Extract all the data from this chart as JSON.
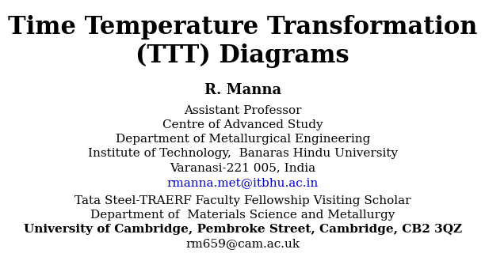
{
  "background_color": "#ffffff",
  "title_line1": "Time Temperature Transformation",
  "title_line2": "(TTT) Diagrams",
  "title_fontsize": 22,
  "title_fontweight": "bold",
  "title_color": "#000000",
  "author": "R. Manna",
  "author_fontsize": 13,
  "author_fontweight": "bold",
  "author_color": "#000000",
  "affiliation_lines": [
    "Assistant Professor",
    "Centre of Advanced Study",
    "Department of Metallurgical Engineering",
    "Institute of Technology,  Banaras Hindu University",
    "Varanasi-221 005, India"
  ],
  "affiliation_fontsize": 11,
  "affiliation_color": "#000000",
  "email1": "rmanna.met@itbhu.ac.in",
  "email1_color": "#0000cc",
  "visiting_lines": [
    "Tata Steel-TRAERF Faculty Fellowship Visiting Scholar",
    "Department of  Materials Science and Metallurgy"
  ],
  "visiting_bold_line": "University of Cambridge, Pembroke Street, Cambridge, CB2 3QZ",
  "email2": "rm659@cam.ac.uk",
  "visiting_fontsize": 11,
  "visiting_color": "#000000"
}
